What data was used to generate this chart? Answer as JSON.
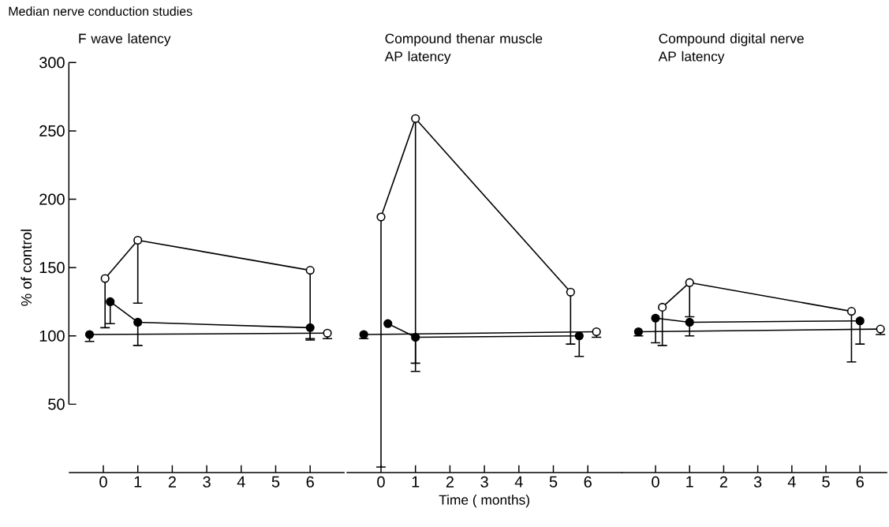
{
  "chart_data": [
    {
      "type": "line",
      "title": "F wave latency",
      "ylabel": "% of control",
      "annotations": [
        "Median nerve conduction studies"
      ],
      "marker": "circle",
      "xlim": [
        -1,
        7
      ],
      "ylim": [
        0,
        300
      ],
      "xticks": [
        0,
        1,
        2,
        3,
        4,
        5,
        6
      ],
      "yticks": [
        50,
        100,
        150,
        200,
        250,
        300
      ],
      "series": [
        {
          "color": "#000000",
          "x": [
            -0.4,
            6.5
          ],
          "values": [
            101,
            102
          ],
          "colors": [
            "#000000",
            "#ffffff"
          ],
          "errors": [
            [
              96,
              101
            ],
            [
              98,
              102
            ]
          ]
        },
        {
          "color": "#000000",
          "x": [
            0.2,
            1,
            6
          ],
          "values": [
            125,
            110,
            106
          ],
          "colors": [
            "#000000",
            "#000000",
            "#000000"
          ],
          "errors": [
            [
              109,
              125
            ],
            [
              93,
              110
            ],
            [
              98,
              106
            ]
          ]
        },
        {
          "color": "#000000",
          "x": [
            0.05,
            1,
            6
          ],
          "values": [
            142,
            170,
            148
          ],
          "colors": [
            "#ffffff",
            "#ffffff",
            "#ffffff"
          ],
          "errors": [
            [
              106,
              142
            ],
            [
              124,
              170
            ],
            [
              97,
              148
            ]
          ]
        }
      ]
    },
    {
      "type": "line",
      "title": "Compound thenar muscle AP latency",
      "xlabel": "Time ( months)",
      "marker": "circle",
      "tick_labels": "x",
      "xlim": [
        -1,
        7
      ],
      "ylim": [
        0,
        300
      ],
      "xticks": [
        0,
        1,
        2,
        3,
        4,
        5,
        6
      ],
      "series": [
        {
          "color": "#000000",
          "x": [
            -0.5,
            6.25
          ],
          "values": [
            101,
            103
          ],
          "colors": [
            "#000000",
            "#ffffff"
          ],
          "errors": [
            [
              98,
              101
            ],
            [
              99,
              103
            ]
          ]
        },
        {
          "color": "#000000",
          "x": [
            0.2,
            1,
            5.75
          ],
          "values": [
            109,
            99,
            100
          ],
          "colors": [
            "#000000",
            "#000000",
            "#000000"
          ],
          "errors": [
            null,
            [
              74,
              99
            ],
            [
              85,
              100
            ]
          ]
        },
        {
          "color": "#000000",
          "x": [
            0,
            1,
            5.5
          ],
          "values": [
            187,
            259,
            132
          ],
          "colors": [
            "#ffffff",
            "#ffffff",
            "#ffffff"
          ],
          "errors": [
            [
              4,
              187
            ],
            [
              80,
              259
            ],
            [
              94,
              132
            ]
          ]
        }
      ]
    },
    {
      "type": "line",
      "title": "Compound digital nerve AP latency",
      "marker": "circle",
      "tick_labels": "x",
      "xlim": [
        -1,
        6.8
      ],
      "ylim": [
        0,
        300
      ],
      "xticks": [
        0,
        1,
        2,
        3,
        4,
        5,
        6
      ],
      "series": [
        {
          "color": "#000000",
          "x": [
            -0.5,
            6.6
          ],
          "values": [
            103,
            105
          ],
          "colors": [
            "#000000",
            "#ffffff"
          ],
          "errors": [
            [
              100,
              103
            ],
            [
              101,
              105
            ]
          ]
        },
        {
          "color": "#000000",
          "x": [
            0,
            1,
            6
          ],
          "values": [
            113,
            110,
            111
          ],
          "colors": [
            "#000000",
            "#000000",
            "#000000"
          ],
          "errors": [
            [
              95,
              113
            ],
            [
              100,
              110
            ],
            [
              94,
              111
            ]
          ]
        },
        {
          "color": "#000000",
          "x": [
            0.2,
            1,
            5.75
          ],
          "values": [
            121,
            139,
            118
          ],
          "colors": [
            "#ffffff",
            "#ffffff",
            "#ffffff"
          ],
          "errors": [
            [
              93,
              121
            ],
            [
              114,
              139
            ],
            [
              81,
              118
            ]
          ]
        }
      ]
    }
  ]
}
